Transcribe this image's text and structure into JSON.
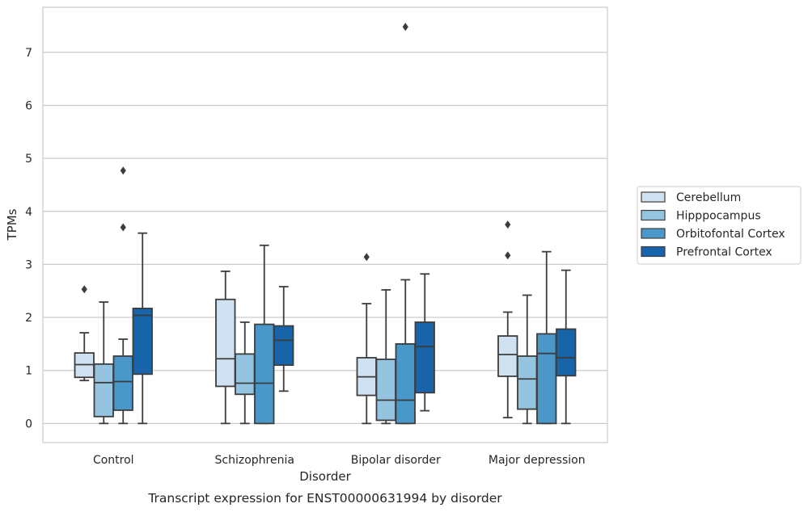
{
  "chart_data": {
    "type": "box",
    "categories": [
      "Control",
      "Schizophrenia",
      "Bipolar disorder",
      "Major depression"
    ],
    "xlabel": "Disorder",
    "ylabel": "TPMs",
    "caption": "Transcript expression for ENST00000631994 by disorder",
    "ylim": [
      -0.36,
      7.85
    ],
    "yticks": [
      0,
      1,
      2,
      3,
      4,
      5,
      6,
      7
    ],
    "grid": "horizontal",
    "legend_position": "right",
    "series": [
      {
        "name": "Cerebellum",
        "color": "#d0e1f2",
        "boxes": [
          {
            "whislo": 0.81,
            "q1": 0.87,
            "med": 1.11,
            "q3": 1.33,
            "whishi": 1.71,
            "fliers": [
              2.53
            ]
          },
          {
            "whislo": 0.0,
            "q1": 0.7,
            "med": 1.22,
            "q3": 2.34,
            "whishi": 2.87,
            "fliers": []
          },
          {
            "whislo": 0.0,
            "q1": 0.53,
            "med": 0.88,
            "q3": 1.24,
            "whishi": 2.26,
            "fliers": [
              3.14
            ]
          },
          {
            "whislo": 0.11,
            "q1": 0.89,
            "med": 1.3,
            "q3": 1.65,
            "whishi": 2.1,
            "fliers": [
              3.17,
              3.75
            ]
          }
        ]
      },
      {
        "name": "Hipppocampus",
        "color": "#94c4df",
        "boxes": [
          {
            "whislo": 0.0,
            "q1": 0.13,
            "med": 0.77,
            "q3": 1.12,
            "whishi": 2.29,
            "fliers": []
          },
          {
            "whislo": 0.0,
            "q1": 0.55,
            "med": 0.76,
            "q3": 1.31,
            "whishi": 1.91,
            "fliers": []
          },
          {
            "whislo": 0.0,
            "q1": 0.06,
            "med": 0.44,
            "q3": 1.21,
            "whishi": 2.52,
            "fliers": []
          },
          {
            "whislo": 0.0,
            "q1": 0.27,
            "med": 0.84,
            "q3": 1.27,
            "whishi": 2.42,
            "fliers": []
          }
        ]
      },
      {
        "name": "Orbitofontal Cortex",
        "color": "#4a98c9",
        "boxes": [
          {
            "whislo": 0.0,
            "q1": 0.25,
            "med": 0.79,
            "q3": 1.27,
            "whishi": 1.59,
            "fliers": [
              3.7,
              4.77
            ]
          },
          {
            "whislo": 0.0,
            "q1": 0.0,
            "med": 0.76,
            "q3": 1.87,
            "whishi": 3.36,
            "fliers": []
          },
          {
            "whislo": 0.0,
            "q1": 0.0,
            "med": 0.44,
            "q3": 1.5,
            "whishi": 2.71,
            "fliers": [
              7.48
            ]
          },
          {
            "whislo": 0.0,
            "q1": 0.0,
            "med": 1.32,
            "q3": 1.69,
            "whishi": 3.24,
            "fliers": []
          }
        ]
      },
      {
        "name": "Prefrontal Cortex",
        "color": "#1764ab",
        "boxes": [
          {
            "whislo": 0.0,
            "q1": 0.93,
            "med": 2.04,
            "q3": 2.17,
            "whishi": 3.59,
            "fliers": []
          },
          {
            "whislo": 0.61,
            "q1": 1.1,
            "med": 1.57,
            "q3": 1.84,
            "whishi": 2.58,
            "fliers": []
          },
          {
            "whislo": 0.24,
            "q1": 0.58,
            "med": 1.45,
            "q3": 1.91,
            "whishi": 2.82,
            "fliers": []
          },
          {
            "whislo": 0.0,
            "q1": 0.9,
            "med": 1.24,
            "q3": 1.78,
            "whishi": 2.89,
            "fliers": []
          }
        ]
      }
    ]
  }
}
